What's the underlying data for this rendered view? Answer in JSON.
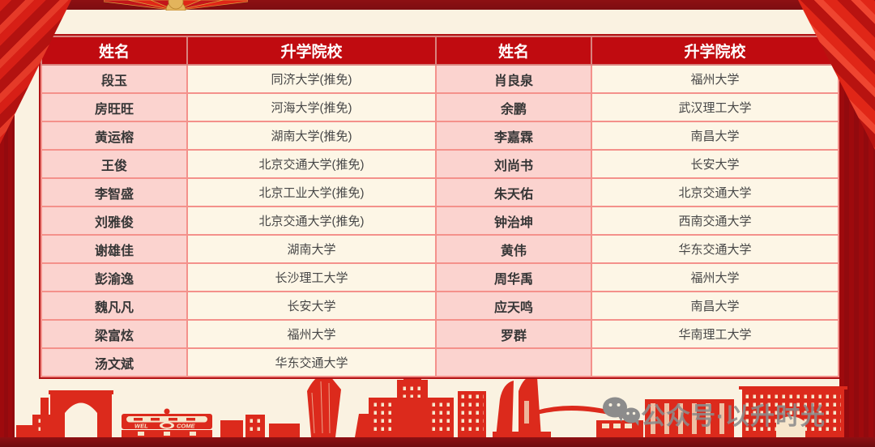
{
  "table": {
    "headers": [
      "姓名",
      "升学院校",
      "姓名",
      "升学院校"
    ],
    "rows": [
      [
        "段玉",
        "同济大学(推免)",
        "肖良泉",
        "福州大学"
      ],
      [
        "房旺旺",
        "河海大学(推免)",
        "余鹏",
        "武汉理工大学"
      ],
      [
        "黄运榕",
        "湖南大学(推免)",
        "李嘉霖",
        "南昌大学"
      ],
      [
        "王俊",
        "北京交通大学(推免)",
        "刘尚书",
        "长安大学"
      ],
      [
        "李智盛",
        "北京工业大学(推免)",
        "朱天佑",
        "北京交通大学"
      ],
      [
        "刘雅俊",
        "北京交通大学(推免)",
        "钟治坤",
        "西南交通大学"
      ],
      [
        "谢雄佳",
        "湖南大学",
        "黄伟",
        "华东交通大学"
      ],
      [
        "彭渝逸",
        "长沙理工大学",
        "周华禹",
        "福州大学"
      ],
      [
        "魏凡凡",
        "长安大学",
        "应天鸣",
        "南昌大学"
      ],
      [
        "梁富炫",
        "福州大学",
        "罗群",
        "华南理工大学"
      ],
      [
        "汤文斌",
        "华东交通大学",
        "",
        ""
      ]
    ]
  },
  "watermark": {
    "text": "公众号·以升时光"
  },
  "skyline": {
    "gate_sign_left": "WEL",
    "gate_sign_right": "COME"
  },
  "colors": {
    "page_bg": "#faf2e1",
    "header_bg": "#c00b10",
    "header_text": "#ffffff",
    "name_cell_bg": "#fbd3cf",
    "school_cell_bg": "#fdf6e6",
    "cell_border": "#f4918b",
    "table_outer_border": "#b01214",
    "side_band": "#9e0a0d",
    "top_strip": "#7d0d11",
    "ribbon_red": "#d71f16",
    "skyline_red": "#dc2a1c",
    "gold_trim": "#d9a23e",
    "watermark_gray": "#8c8c8c"
  }
}
